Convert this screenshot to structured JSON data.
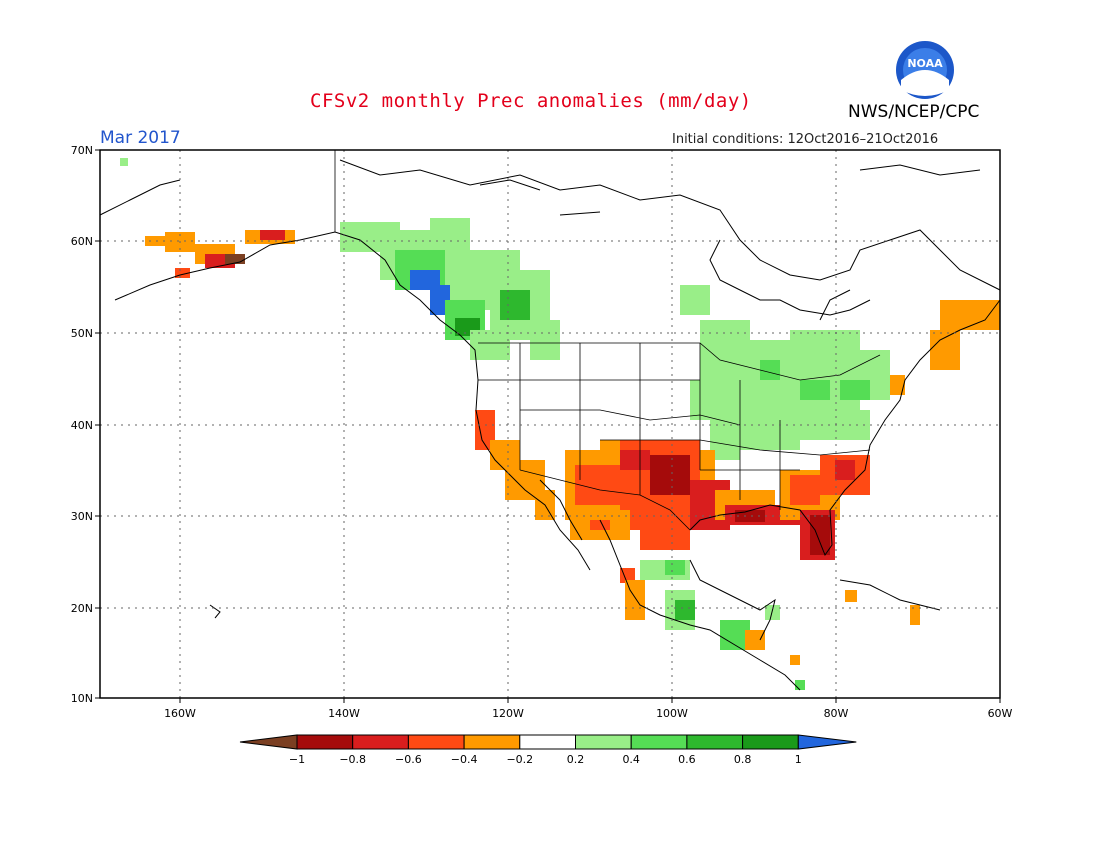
{
  "title": "CFSv2 monthly Prec anomalies (mm/day)",
  "month": "Mar 2017",
  "initial_conditions": "Initial conditions: 12Oct2016–21Oct2016",
  "agency": "NWS/NCEP/CPC",
  "logo_text": "NOAA",
  "lat_labels": [
    "70N",
    "60N",
    "50N",
    "40N",
    "30N",
    "20N",
    "10N"
  ],
  "lon_labels": [
    "160W",
    "140W",
    "120W",
    "100W",
    "80W",
    "60W"
  ],
  "colorbar": {
    "labels": [
      "−1",
      "−0.8",
      "−0.6",
      "−0.4",
      "−0.2",
      "0.2",
      "0.4",
      "0.6",
      "0.8",
      "1"
    ],
    "colors": [
      "#7b3f22",
      "#a50b0b",
      "#d91e1e",
      "#ff4a14",
      "#ff9a00",
      "#ffffff",
      "#99ee88",
      "#55dd55",
      "#2eb82e",
      "#1a9a1a",
      "#2266dd"
    ]
  },
  "colors": {
    "dry_strong": "#a50b0b",
    "dry_mod": "#d91e1e",
    "dry_orange_red": "#ff4a14",
    "dry_weak": "#ff9a00",
    "wet_weak": "#99ee88",
    "wet_mod": "#55dd55",
    "wet_strong": "#2eb82e",
    "wet_vstrong": "#1a9a1a",
    "wet_max": "#2266dd",
    "dry_min": "#7b3f22"
  }
}
